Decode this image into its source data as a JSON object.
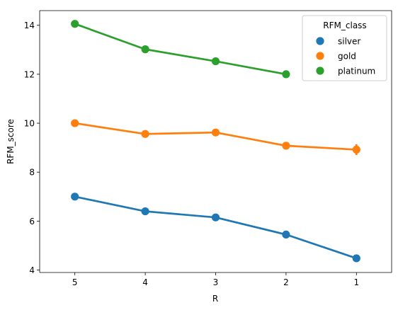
{
  "chart_data": {
    "type": "line",
    "xlabel": "R",
    "ylabel": "RFM_score",
    "categories": [
      "5",
      "4",
      "3",
      "2",
      "1"
    ],
    "ylim": [
      3.9,
      14.6
    ],
    "yticks": [
      4,
      6,
      8,
      10,
      12,
      14
    ],
    "grid": false,
    "legend": {
      "title": "RFM_class",
      "placement": "top-right"
    },
    "series": [
      {
        "name": "silver",
        "color": "#1f77b4",
        "values": [
          7.0,
          6.4,
          6.15,
          5.45,
          4.48
        ],
        "err": [
          0.05,
          0.05,
          0.05,
          0.05,
          0.08
        ]
      },
      {
        "name": "gold",
        "color": "#ff7f0e",
        "values": [
          10.0,
          9.56,
          9.62,
          9.08,
          8.92
        ],
        "err": [
          0.15,
          0.06,
          0.06,
          0.06,
          0.22
        ]
      },
      {
        "name": "platinum",
        "color": "#2ca02c",
        "values": [
          14.06,
          13.02,
          12.53,
          12.0,
          null
        ],
        "err": [
          0.05,
          0.04,
          0.04,
          0.04,
          0
        ]
      }
    ]
  }
}
